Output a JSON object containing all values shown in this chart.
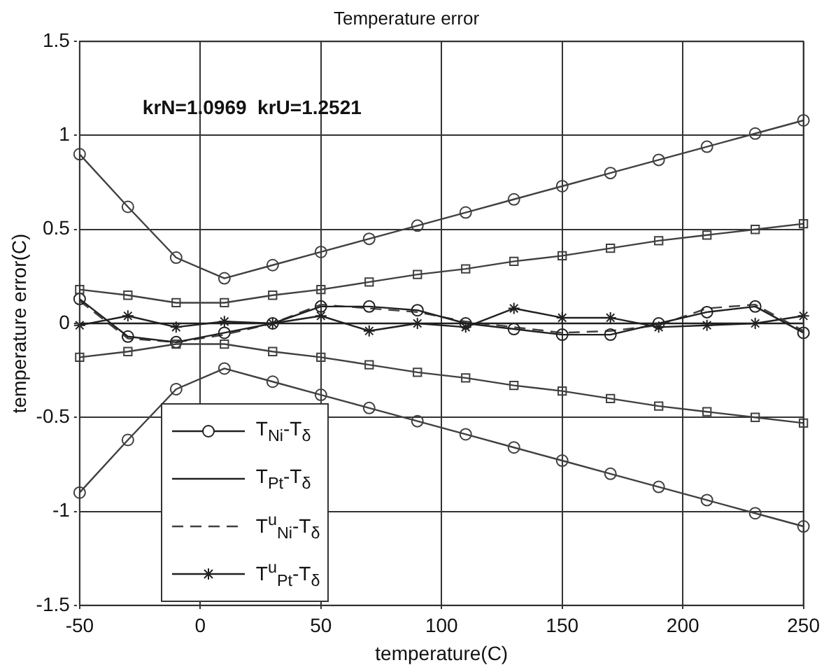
{
  "chart_data": {
    "type": "line",
    "title": "Temperature error",
    "xlabel": "temperature(C)",
    "ylabel": "temperature error(C)",
    "x": [
      -50,
      -30,
      -10,
      10,
      30,
      50,
      70,
      90,
      110,
      130,
      150,
      170,
      190,
      210,
      230,
      250
    ],
    "xlim": [
      -50,
      250
    ],
    "xticks": [
      -50,
      0,
      50,
      100,
      150,
      200,
      250
    ],
    "ylim": [
      -1.5,
      1.5
    ],
    "yticks": [
      -1.5,
      -1,
      -0.5,
      0,
      0.5,
      1,
      1.5
    ],
    "grid": true,
    "legend": "bottom left",
    "line_style": "solid",
    "annotations": [
      "krN=1.0969  krU=1.2521"
    ],
    "series": [
      {
        "color": "#404040",
        "marker": "circle",
        "values": [
          0.9,
          0.62,
          0.35,
          0.24,
          0.31,
          0.38,
          0.45,
          0.52,
          0.59,
          0.66,
          0.73,
          0.8,
          0.87,
          0.94,
          1.01,
          1.08
        ]
      },
      {
        "color": "#404040",
        "marker": "square",
        "values": [
          0.18,
          0.15,
          0.11,
          0.11,
          0.15,
          0.18,
          0.22,
          0.26,
          0.29,
          0.33,
          0.36,
          0.4,
          0.44,
          0.47,
          0.5,
          0.53
        ]
      },
      {
        "color": "#404040",
        "marker": "square",
        "values": [
          -0.18,
          -0.15,
          -0.11,
          -0.11,
          -0.15,
          -0.18,
          -0.22,
          -0.26,
          -0.29,
          -0.33,
          -0.36,
          -0.4,
          -0.44,
          -0.47,
          -0.5,
          -0.53
        ]
      },
      {
        "color": "#404040",
        "marker": "circle",
        "values": [
          -0.9,
          -0.62,
          -0.35,
          -0.24,
          -0.31,
          -0.38,
          -0.45,
          -0.52,
          -0.59,
          -0.66,
          -0.73,
          -0.8,
          -0.87,
          -0.94,
          -1.01,
          -1.08
        ]
      },
      {
        "name": "T$_{Ni}$-T$_{δ}$",
        "color": "#202020",
        "marker": "circle",
        "values": [
          0.13,
          -0.07,
          -0.1,
          -0.05,
          0,
          0.09,
          0.09,
          0.07,
          0,
          -0.03,
          -0.06,
          -0.06,
          0,
          0.06,
          0.09,
          -0.05
        ]
      },
      {
        "name": "T$_{Pt}$-T$_{δ}$",
        "color": "#202020",
        "marker": "none",
        "values": [
          0,
          0,
          0,
          0,
          0,
          0,
          0,
          0,
          0,
          0,
          0,
          0,
          0,
          0,
          0,
          0
        ]
      },
      {
        "name": "T$^{u}$$_{Ni}$-T$_{δ}$",
        "color": "#404040",
        "marker": "none",
        "line_style": "dashed",
        "values": [
          0.12,
          -0.08,
          -0.1,
          -0.06,
          0,
          0.1,
          0.08,
          0.06,
          0.01,
          -0.02,
          -0.05,
          -0.04,
          -0.01,
          0.08,
          0.1,
          -0.04
        ]
      },
      {
        "name": "T$^{u}$$_{Pt}$-T$_{δ}$",
        "color": "#202020",
        "marker": "cross",
        "values": [
          -0.01,
          0.04,
          -0.02,
          0.01,
          0,
          0.04,
          -0.04,
          0,
          -0.02,
          0.08,
          0.03,
          0.03,
          -0.02,
          -0.01,
          0,
          0.04
        ]
      }
    ]
  }
}
